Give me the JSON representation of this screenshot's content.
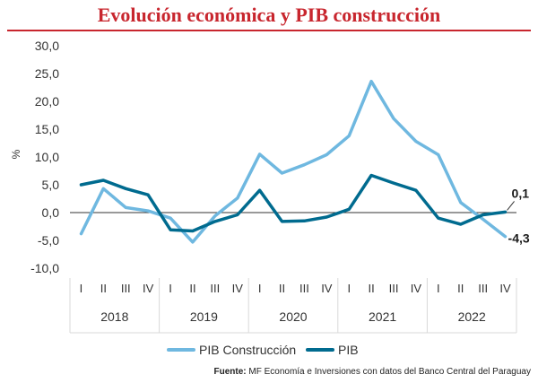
{
  "title": "Evolución económica y PIB construcción",
  "source": {
    "label": "Fuente:",
    "text": "MF Economía e Inversiones con datos del Banco Central del Paraguay"
  },
  "colors": {
    "title": "#c8262e",
    "pib_construccion": "#6fb8e0",
    "pib": "#006b8f",
    "grid": "#d9d9d9",
    "axis": "#333333"
  },
  "chart_data": {
    "type": "line",
    "ylabel": "%",
    "ylim": [
      -10,
      30
    ],
    "yticks": [
      "30,0",
      "25,0",
      "20,0",
      "15,0",
      "10,0",
      "5,0",
      "0,0",
      "-5,0",
      "-10,0"
    ],
    "ytick_values": [
      30,
      25,
      20,
      15,
      10,
      5,
      0,
      -5,
      -10
    ],
    "grid": false,
    "legend_position": "bottom",
    "categories": [
      "I",
      "II",
      "III",
      "IV",
      "I",
      "II",
      "III",
      "IV",
      "I",
      "II",
      "III",
      "IV",
      "I",
      "II",
      "III",
      "IV",
      "I",
      "II",
      "III",
      "IV"
    ],
    "groups": [
      "2018",
      "2019",
      "2020",
      "2021",
      "2022"
    ],
    "series": [
      {
        "name": "PIB Construcción",
        "values": [
          -3.8,
          4.3,
          0.9,
          0.3,
          -1.0,
          -5.3,
          -0.6,
          2.6,
          10.5,
          7.1,
          8.6,
          10.4,
          13.8,
          23.6,
          16.9,
          12.8,
          10.4,
          1.8,
          -1.2,
          -4.3
        ]
      },
      {
        "name": "PIB",
        "values": [
          5.0,
          5.8,
          4.3,
          3.2,
          -3.1,
          -3.3,
          -1.6,
          -0.4,
          4.0,
          -1.6,
          -1.5,
          -0.8,
          0.6,
          6.7,
          5.3,
          4.0,
          -1.0,
          -2.1,
          -0.4,
          0.1
        ]
      }
    ],
    "annotations": [
      {
        "text": "0,1",
        "series": "PIB",
        "index": 19
      },
      {
        "text": "-4,3",
        "series": "PIB Construcción",
        "index": 19
      }
    ]
  }
}
